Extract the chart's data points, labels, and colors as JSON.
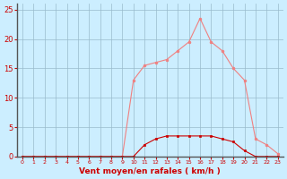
{
  "title": "",
  "xlabel": "Vent moyen/en rafales ( km/h )",
  "x_values": [
    0,
    1,
    2,
    3,
    4,
    5,
    6,
    7,
    8,
    9,
    10,
    11,
    12,
    13,
    14,
    15,
    16,
    17,
    18,
    19,
    20,
    21,
    22,
    23
  ],
  "y_rafales": [
    0,
    0,
    0,
    0,
    0,
    0,
    0,
    0,
    0,
    0,
    13,
    15.5,
    16,
    16.5,
    18,
    19.5,
    23.5,
    19.5,
    18,
    15,
    13,
    3,
    2,
    0.5
  ],
  "y_moyen": [
    0,
    0,
    0,
    0,
    0,
    0,
    0,
    0,
    0,
    0,
    0,
    2,
    3,
    3.5,
    3.5,
    3.5,
    3.5,
    3.5,
    3,
    2.5,
    1,
    0,
    0,
    0
  ],
  "color_rafales": "#f08080",
  "color_moyen": "#cc0000",
  "bg_color": "#cceeff",
  "grid_color": "#99bbcc",
  "ylim": [
    0,
    26
  ],
  "yticks": [
    0,
    5,
    10,
    15,
    20,
    25
  ],
  "xlim": [
    -0.5,
    23.5
  ],
  "xlabel_color": "#cc0000",
  "tick_color": "#cc0000",
  "axis_color": "#888888"
}
